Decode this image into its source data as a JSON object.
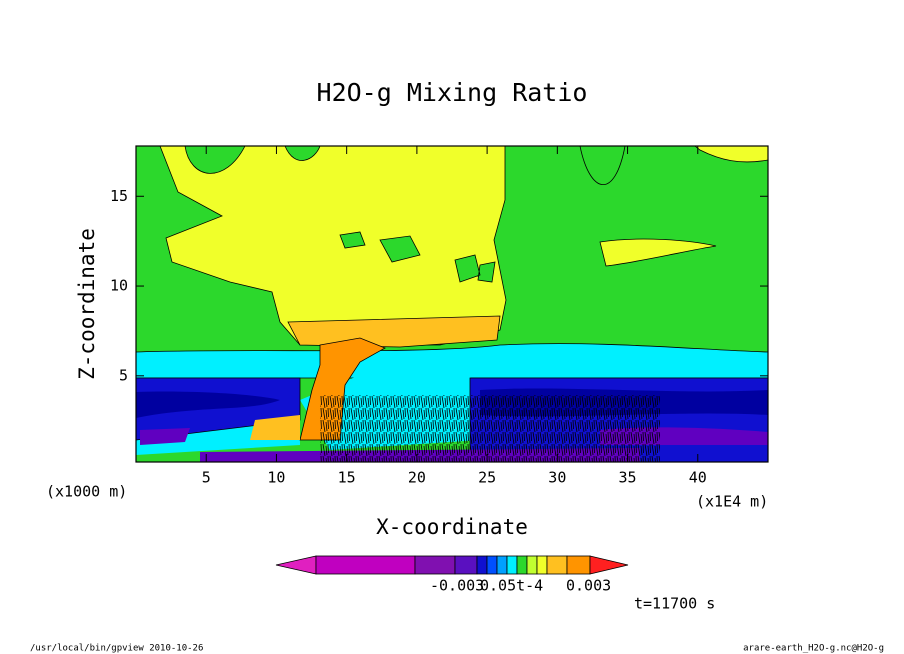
{
  "chart_data": {
    "type": "contour",
    "title": "H2O-g Mixing Ratio",
    "x_label": "X-coordinate",
    "y_label": "Z-coordinate",
    "x_unit_left": "(x1000 m)",
    "x_unit_right": "(x1E4 m)",
    "xlim": [
      0,
      45
    ],
    "ylim": [
      0.2,
      17.8
    ],
    "xticks": [
      5,
      10,
      15,
      20,
      25,
      30,
      35,
      40
    ],
    "yticks": [
      5,
      10,
      15
    ],
    "colorbar_labels": [
      "-0.003",
      "0.05t-4",
      "0.003"
    ],
    "time": "t=11700 s",
    "footer_left": "/usr/local/bin/gpview  2010-10-26",
    "footer_right": "arare-earth_H2O-g.nc@H2O-g"
  }
}
